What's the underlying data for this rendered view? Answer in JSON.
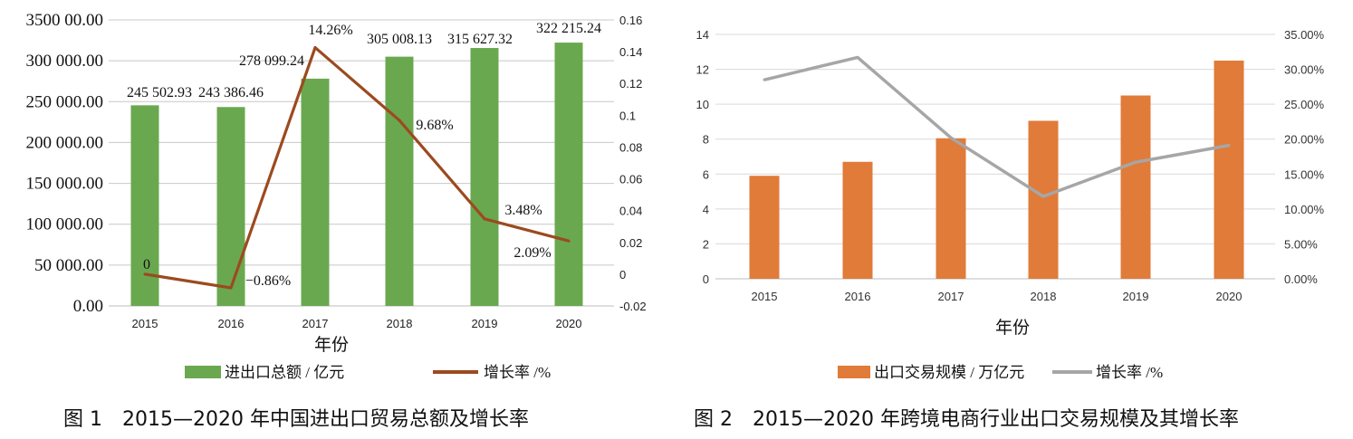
{
  "chart_data": [
    {
      "type": "bar",
      "caption": "图 1　2015—2020 年中国进出口贸易总额及增长率",
      "xlabel": "年份",
      "categories": [
        "2015",
        "2016",
        "2017",
        "2018",
        "2019",
        "2020"
      ],
      "series": [
        {
          "name": "进出口总额 / 亿元",
          "type": "bar",
          "axis": "left",
          "color": "#6aa84f",
          "values": [
            245502.93,
            243386.46,
            278099.24,
            305008.13,
            315627.32,
            322215.24
          ],
          "labels": [
            "245 502.93",
            "243 386.46",
            "278 099.24",
            "305 008.13",
            "315 627.32",
            "322 215.24"
          ]
        },
        {
          "name": "增长率 /%",
          "type": "line",
          "axis": "right",
          "color": "#9c4a20",
          "values": [
            0,
            -0.0086,
            0.1426,
            0.0968,
            0.0348,
            0.0209
          ],
          "labels": [
            "0",
            "−0.86%",
            "14.26%",
            "9.68%",
            "3.48%",
            "2.09%"
          ]
        }
      ],
      "ylim_left": [
        0,
        350000
      ],
      "yticks_left": [
        "0.00",
        "50 000.00",
        "100 000.00",
        "150 000.00",
        "200 000.00",
        "250 000.00",
        "300 000.00",
        "3500 00.00"
      ],
      "ylim_right": [
        -0.02,
        0.16
      ],
      "yticks_right": [
        "-0.02",
        "0",
        "0.02",
        "0.04",
        "0.06",
        "0.08",
        "0.1",
        "0.12",
        "0.14",
        "0.16"
      ],
      "grid": true,
      "legend": "bottom"
    },
    {
      "type": "bar",
      "caption": "图 2　2015—2020 年跨境电商行业出口交易规模及其增长率",
      "xlabel": "年份",
      "categories": [
        "2015",
        "2016",
        "2017",
        "2018",
        "2019",
        "2020"
      ],
      "series": [
        {
          "name": "出口交易规模 / 万亿元",
          "type": "bar",
          "axis": "left",
          "color": "#e07b39",
          "values": [
            5.9,
            6.7,
            8.05,
            9.05,
            10.5,
            12.5
          ]
        },
        {
          "name": "增长率 /%",
          "type": "line",
          "axis": "right",
          "color": "#a6a6a6",
          "values": [
            0.285,
            0.317,
            0.202,
            0.118,
            0.167,
            0.191
          ]
        }
      ],
      "ylim_left": [
        0,
        14
      ],
      "yticks_left": [
        "0",
        "2",
        "4",
        "6",
        "8",
        "10",
        "12",
        "14"
      ],
      "ylim_right": [
        0,
        0.35
      ],
      "yticks_right": [
        "0.00%",
        "5.00%",
        "10.00%",
        "15.00%",
        "20.00%",
        "25.00%",
        "30.00%",
        "35.00%"
      ],
      "grid": true,
      "legend": "bottom"
    }
  ]
}
